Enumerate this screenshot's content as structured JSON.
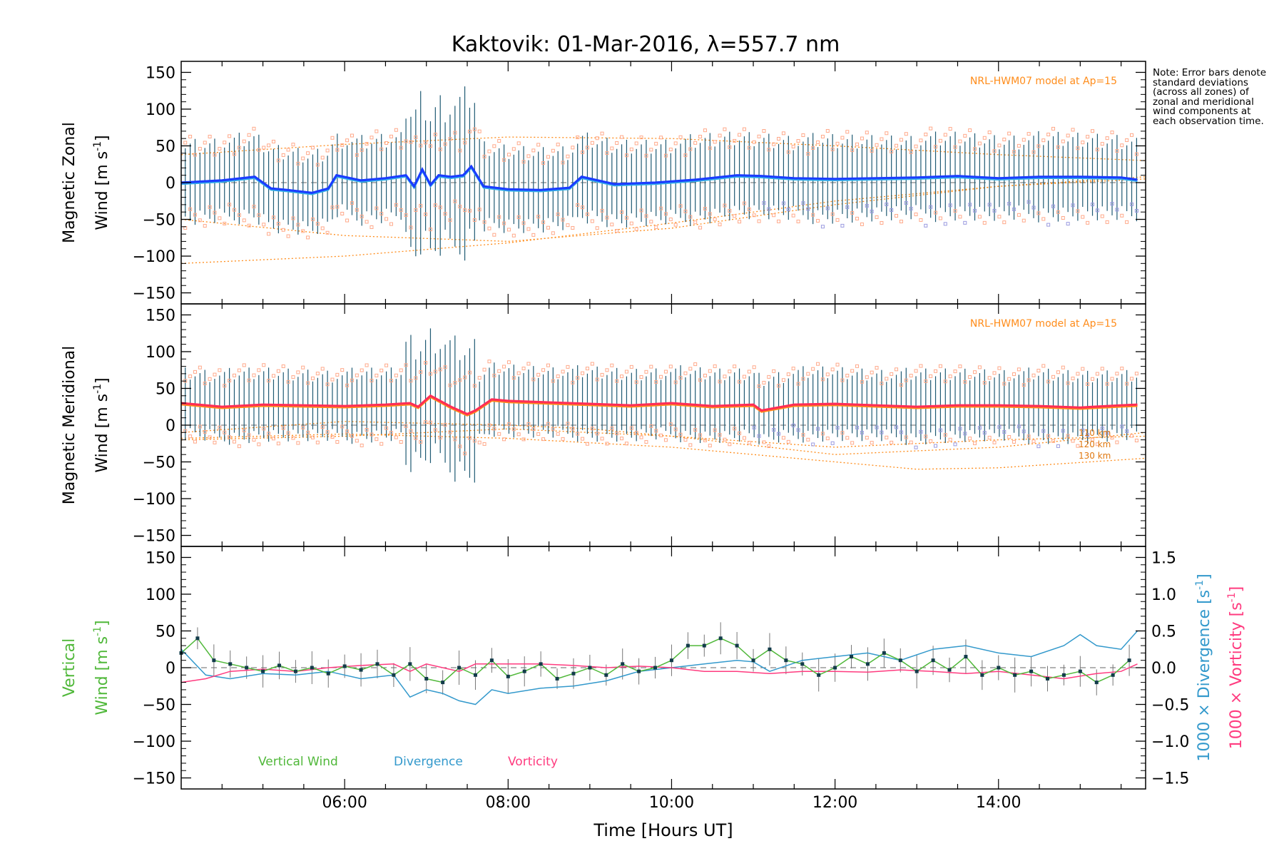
{
  "title": "Kaktovik: 01-Mar-2016, λ=557.7 nm",
  "note": "Note: Error bars denote standard deviations (across all zones) of zonal and meridional wind components at each observation time.",
  "x_axis": {
    "label": "Time [Hours UT]",
    "ticks": [
      "06:00",
      "08:00",
      "10:00",
      "12:00",
      "14:00"
    ],
    "tick_hours": [
      6,
      8,
      10,
      12,
      14
    ],
    "range_hours": [
      4.0,
      15.8
    ]
  },
  "colors": {
    "zonal": "#1a3cff",
    "zonal_light": "#35b0e8",
    "meridional": "#ff2d55",
    "errorbar": "#1f5a73",
    "model": "#ff8c1a",
    "scatter_peach": "#ffa98a",
    "scatter_lavender": "#9a9ae0",
    "vertical": "#50b83a",
    "divergence": "#3399cc",
    "vorticity": "#ff3b7f"
  },
  "chart_data": [
    {
      "type": "line",
      "panel": "zonal",
      "ylabel_line1": "Magnetic Zonal",
      "ylabel_line2": "Wind [m s",
      "ylabel_sup": "-1",
      "ylabel_close": "]",
      "ylim": [
        -165,
        165
      ],
      "yticks": [
        150,
        100,
        50,
        0,
        -50,
        -100,
        -150
      ],
      "model_label": "NRL-HWM07 model at Ap=15",
      "series": [
        {
          "x": [
            4.0,
            4.5,
            4.9,
            5.1,
            5.3,
            5.6,
            5.8,
            5.9,
            6.2,
            6.5,
            6.75,
            6.85,
            6.95,
            7.05,
            7.15,
            7.3,
            7.45,
            7.55,
            7.7,
            8.0,
            8.4,
            8.75,
            8.9,
            9.3,
            9.8,
            10.3,
            10.8,
            11.1,
            11.5,
            12.0,
            12.5,
            13.0,
            13.5,
            14.0,
            14.5,
            15.0,
            15.5,
            15.7
          ],
          "y": [
            0,
            3,
            8,
            -8,
            -10,
            -14,
            -8,
            10,
            3,
            6,
            10,
            -5,
            18,
            -3,
            10,
            8,
            10,
            22,
            -5,
            -9,
            -10,
            -7,
            8,
            -2,
            0,
            4,
            10,
            9,
            6,
            5,
            6,
            7,
            9,
            6,
            8,
            8,
            7,
            4
          ]
        }
      ],
      "error_sd": 50,
      "models": [
        {
          "x": [
            4.0,
            6.0,
            8.0,
            10.0,
            12.0,
            14.0,
            15.8
          ],
          "y": [
            38,
            52,
            62,
            60,
            50,
            38,
            30
          ]
        },
        {
          "x": [
            4.0,
            6.0,
            8.0,
            10.0,
            12.0,
            14.0,
            15.8
          ],
          "y": [
            -50,
            -72,
            -80,
            -62,
            -30,
            -5,
            8
          ]
        },
        {
          "x": [
            4.0,
            6.0,
            8.0,
            10.0,
            12.0,
            14.0,
            15.8
          ],
          "y": [
            -110,
            -100,
            -82,
            -55,
            -25,
            -5,
            5
          ]
        }
      ]
    },
    {
      "type": "line",
      "panel": "meridional",
      "ylabel_line1": "Magnetic Meridional",
      "ylabel_line2": "Wind [m s",
      "ylabel_sup": "-1",
      "ylabel_close": "]",
      "ylim": [
        -165,
        165
      ],
      "yticks": [
        150,
        100,
        50,
        0,
        -50,
        -100,
        -150
      ],
      "model_label": "NRL-HWM07 model at Ap=15",
      "model_altitudes": [
        "110 km",
        "120 km",
        "130 km"
      ],
      "series": [
        {
          "x": [
            4.0,
            4.5,
            5.0,
            5.5,
            6.0,
            6.5,
            6.8,
            6.9,
            7.0,
            7.05,
            7.3,
            7.5,
            7.6,
            7.8,
            8.0,
            8.5,
            9.0,
            9.5,
            10.0,
            10.5,
            11.0,
            11.1,
            11.5,
            12.0,
            12.5,
            13.0,
            13.5,
            14.0,
            14.5,
            15.0,
            15.5,
            15.7
          ],
          "y": [
            30,
            25,
            28,
            27,
            26,
            28,
            30,
            25,
            35,
            40,
            25,
            15,
            20,
            35,
            33,
            31,
            29,
            27,
            30,
            26,
            28,
            20,
            28,
            29,
            27,
            25,
            27,
            27,
            26,
            24,
            27,
            28
          ]
        }
      ],
      "error_sd": 42,
      "models": [
        {
          "x": [
            4.0,
            6.0,
            8.0,
            9.0,
            10.0,
            12.0,
            14.0,
            15.8
          ],
          "y": [
            -10,
            5,
            0,
            -5,
            -15,
            -40,
            -30,
            -10
          ]
        },
        {
          "x": [
            4.0,
            6.0,
            8.0,
            10.0,
            12.0,
            13.0,
            14.0,
            15.8
          ],
          "y": [
            -18,
            -12,
            -18,
            -30,
            -50,
            -60,
            -58,
            -45
          ]
        },
        {
          "x": [
            4.0,
            6.0,
            8.0,
            10.0,
            12.0,
            14.0,
            15.8
          ],
          "y": [
            -20,
            -15,
            -5,
            -15,
            -30,
            -20,
            -15
          ]
        }
      ]
    },
    {
      "type": "line",
      "panel": "vertical",
      "ylabel_word1": "Vertical",
      "ylabel_line2": "Wind [m s",
      "ylabel_sup": "-1",
      "ylabel_close": "]",
      "ylim": [
        -165,
        165
      ],
      "yticks": [
        150,
        100,
        50,
        0,
        -50,
        -100,
        -150
      ],
      "y2lim": [
        -1.65,
        1.65
      ],
      "y2ticks": [
        "1.5",
        "1.0",
        "0.5",
        "0.0",
        "−0.5",
        "−1.0",
        "−1.5"
      ],
      "y2ticks_values": [
        1.5,
        1.0,
        0.5,
        0.0,
        -0.5,
        -1.0,
        -1.5
      ],
      "y2label_div": "1000 × Divergence [s",
      "y2label_vor": "1000 × Vorticity [s",
      "legend": [
        "Vertical Wind",
        "Divergence",
        "Vorticity"
      ],
      "series": [
        {
          "name": "Vertical Wind",
          "x": [
            4.0,
            4.2,
            4.4,
            4.6,
            4.8,
            5.0,
            5.2,
            5.4,
            5.6,
            5.8,
            6.0,
            6.2,
            6.4,
            6.6,
            6.8,
            7.0,
            7.2,
            7.4,
            7.6,
            7.8,
            8.0,
            8.2,
            8.4,
            8.6,
            8.8,
            9.0,
            9.2,
            9.4,
            9.6,
            9.8,
            10.0,
            10.2,
            10.4,
            10.6,
            10.8,
            11.0,
            11.2,
            11.4,
            11.6,
            11.8,
            12.0,
            12.2,
            12.4,
            12.6,
            12.8,
            13.0,
            13.2,
            13.4,
            13.6,
            13.8,
            14.0,
            14.2,
            14.4,
            14.6,
            14.8,
            15.0,
            15.2,
            15.4,
            15.6
          ],
          "y": [
            20,
            40,
            10,
            5,
            0,
            -5,
            3,
            -5,
            0,
            -8,
            2,
            -3,
            5,
            -10,
            5,
            -15,
            -20,
            0,
            -10,
            10,
            -12,
            -5,
            5,
            -15,
            -8,
            0,
            -10,
            5,
            -5,
            0,
            10,
            30,
            30,
            40,
            30,
            10,
            25,
            10,
            5,
            -10,
            0,
            15,
            5,
            20,
            10,
            -5,
            10,
            -3,
            15,
            -10,
            0,
            -10,
            -5,
            -15,
            -10,
            -5,
            -20,
            -10,
            10
          ]
        },
        {
          "name": "Divergence",
          "x": [
            4.0,
            4.3,
            4.6,
            5.0,
            5.4,
            5.8,
            6.2,
            6.6,
            6.8,
            7.0,
            7.2,
            7.4,
            7.6,
            7.8,
            8.0,
            8.4,
            8.8,
            9.2,
            9.6,
            10.0,
            10.4,
            10.8,
            11.0,
            11.2,
            11.6,
            12.0,
            12.4,
            12.8,
            13.2,
            13.6,
            14.0,
            14.4,
            14.8,
            15.0,
            15.2,
            15.5,
            15.7
          ],
          "y": [
            0.25,
            -0.1,
            -0.15,
            -0.08,
            -0.1,
            -0.05,
            -0.15,
            -0.1,
            -0.4,
            -0.3,
            -0.35,
            -0.45,
            -0.5,
            -0.3,
            -0.35,
            -0.28,
            -0.25,
            -0.18,
            -0.05,
            0.0,
            0.05,
            0.1,
            0.08,
            -0.05,
            0.1,
            0.15,
            0.2,
            0.1,
            0.25,
            0.3,
            0.2,
            0.15,
            0.3,
            0.45,
            0.3,
            0.25,
            0.5
          ]
        },
        {
          "name": "Vorticity",
          "x": [
            4.0,
            4.3,
            4.6,
            5.0,
            5.4,
            5.8,
            6.2,
            6.6,
            6.8,
            7.0,
            7.2,
            7.4,
            7.6,
            7.8,
            8.0,
            8.4,
            8.8,
            9.2,
            9.6,
            10.0,
            10.4,
            10.8,
            11.2,
            11.6,
            12.0,
            12.4,
            12.8,
            13.2,
            13.6,
            14.0,
            14.4,
            14.8,
            15.2,
            15.5,
            15.7
          ],
          "y": [
            -0.2,
            -0.15,
            -0.05,
            -0.02,
            -0.05,
            0.0,
            0.03,
            0.05,
            -0.05,
            0.05,
            0.0,
            -0.05,
            0.05,
            0.05,
            0.05,
            0.05,
            0.03,
            0.0,
            0.02,
            0.0,
            -0.05,
            -0.05,
            -0.08,
            -0.05,
            -0.05,
            -0.06,
            -0.03,
            -0.05,
            -0.08,
            -0.05,
            -0.1,
            -0.15,
            -0.08,
            -0.05,
            0.05
          ]
        }
      ]
    }
  ]
}
